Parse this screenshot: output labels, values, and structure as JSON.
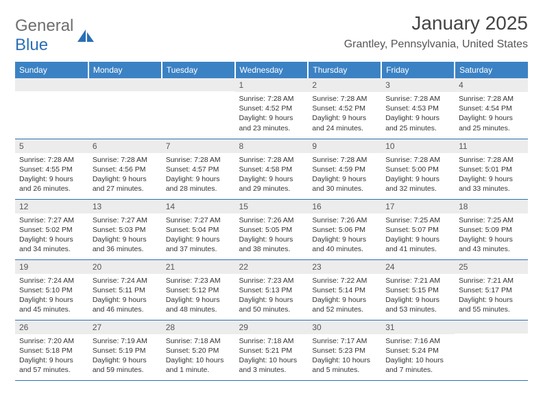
{
  "brand": {
    "part1": "General",
    "part2": "Blue"
  },
  "title": "January 2025",
  "location": "Grantley, Pennsylvania, United States",
  "colors": {
    "header_bg": "#3b82c4",
    "header_text": "#ffffff",
    "rule": "#2a6fb5",
    "daynum_bg": "#ececec",
    "body_text": "#333333",
    "title_text": "#444444",
    "logo_gray": "#6e6e6e",
    "logo_blue": "#2a6fb5"
  },
  "day_headers": [
    "Sunday",
    "Monday",
    "Tuesday",
    "Wednesday",
    "Thursday",
    "Friday",
    "Saturday"
  ],
  "weeks": [
    [
      {
        "n": "",
        "sr": "",
        "ss": "",
        "dl": ""
      },
      {
        "n": "",
        "sr": "",
        "ss": "",
        "dl": ""
      },
      {
        "n": "",
        "sr": "",
        "ss": "",
        "dl": ""
      },
      {
        "n": "1",
        "sr": "7:28 AM",
        "ss": "4:52 PM",
        "dl": "9 hours and 23 minutes."
      },
      {
        "n": "2",
        "sr": "7:28 AM",
        "ss": "4:52 PM",
        "dl": "9 hours and 24 minutes."
      },
      {
        "n": "3",
        "sr": "7:28 AM",
        "ss": "4:53 PM",
        "dl": "9 hours and 25 minutes."
      },
      {
        "n": "4",
        "sr": "7:28 AM",
        "ss": "4:54 PM",
        "dl": "9 hours and 25 minutes."
      }
    ],
    [
      {
        "n": "5",
        "sr": "7:28 AM",
        "ss": "4:55 PM",
        "dl": "9 hours and 26 minutes."
      },
      {
        "n": "6",
        "sr": "7:28 AM",
        "ss": "4:56 PM",
        "dl": "9 hours and 27 minutes."
      },
      {
        "n": "7",
        "sr": "7:28 AM",
        "ss": "4:57 PM",
        "dl": "9 hours and 28 minutes."
      },
      {
        "n": "8",
        "sr": "7:28 AM",
        "ss": "4:58 PM",
        "dl": "9 hours and 29 minutes."
      },
      {
        "n": "9",
        "sr": "7:28 AM",
        "ss": "4:59 PM",
        "dl": "9 hours and 30 minutes."
      },
      {
        "n": "10",
        "sr": "7:28 AM",
        "ss": "5:00 PM",
        "dl": "9 hours and 32 minutes."
      },
      {
        "n": "11",
        "sr": "7:28 AM",
        "ss": "5:01 PM",
        "dl": "9 hours and 33 minutes."
      }
    ],
    [
      {
        "n": "12",
        "sr": "7:27 AM",
        "ss": "5:02 PM",
        "dl": "9 hours and 34 minutes."
      },
      {
        "n": "13",
        "sr": "7:27 AM",
        "ss": "5:03 PM",
        "dl": "9 hours and 36 minutes."
      },
      {
        "n": "14",
        "sr": "7:27 AM",
        "ss": "5:04 PM",
        "dl": "9 hours and 37 minutes."
      },
      {
        "n": "15",
        "sr": "7:26 AM",
        "ss": "5:05 PM",
        "dl": "9 hours and 38 minutes."
      },
      {
        "n": "16",
        "sr": "7:26 AM",
        "ss": "5:06 PM",
        "dl": "9 hours and 40 minutes."
      },
      {
        "n": "17",
        "sr": "7:25 AM",
        "ss": "5:07 PM",
        "dl": "9 hours and 41 minutes."
      },
      {
        "n": "18",
        "sr": "7:25 AM",
        "ss": "5:09 PM",
        "dl": "9 hours and 43 minutes."
      }
    ],
    [
      {
        "n": "19",
        "sr": "7:24 AM",
        "ss": "5:10 PM",
        "dl": "9 hours and 45 minutes."
      },
      {
        "n": "20",
        "sr": "7:24 AM",
        "ss": "5:11 PM",
        "dl": "9 hours and 46 minutes."
      },
      {
        "n": "21",
        "sr": "7:23 AM",
        "ss": "5:12 PM",
        "dl": "9 hours and 48 minutes."
      },
      {
        "n": "22",
        "sr": "7:23 AM",
        "ss": "5:13 PM",
        "dl": "9 hours and 50 minutes."
      },
      {
        "n": "23",
        "sr": "7:22 AM",
        "ss": "5:14 PM",
        "dl": "9 hours and 52 minutes."
      },
      {
        "n": "24",
        "sr": "7:21 AM",
        "ss": "5:15 PM",
        "dl": "9 hours and 53 minutes."
      },
      {
        "n": "25",
        "sr": "7:21 AM",
        "ss": "5:17 PM",
        "dl": "9 hours and 55 minutes."
      }
    ],
    [
      {
        "n": "26",
        "sr": "7:20 AM",
        "ss": "5:18 PM",
        "dl": "9 hours and 57 minutes."
      },
      {
        "n": "27",
        "sr": "7:19 AM",
        "ss": "5:19 PM",
        "dl": "9 hours and 59 minutes."
      },
      {
        "n": "28",
        "sr": "7:18 AM",
        "ss": "5:20 PM",
        "dl": "10 hours and 1 minute."
      },
      {
        "n": "29",
        "sr": "7:18 AM",
        "ss": "5:21 PM",
        "dl": "10 hours and 3 minutes."
      },
      {
        "n": "30",
        "sr": "7:17 AM",
        "ss": "5:23 PM",
        "dl": "10 hours and 5 minutes."
      },
      {
        "n": "31",
        "sr": "7:16 AM",
        "ss": "5:24 PM",
        "dl": "10 hours and 7 minutes."
      },
      {
        "n": "",
        "sr": "",
        "ss": "",
        "dl": ""
      }
    ]
  ],
  "labels": {
    "sunrise": "Sunrise:",
    "sunset": "Sunset:",
    "daylight": "Daylight:"
  }
}
